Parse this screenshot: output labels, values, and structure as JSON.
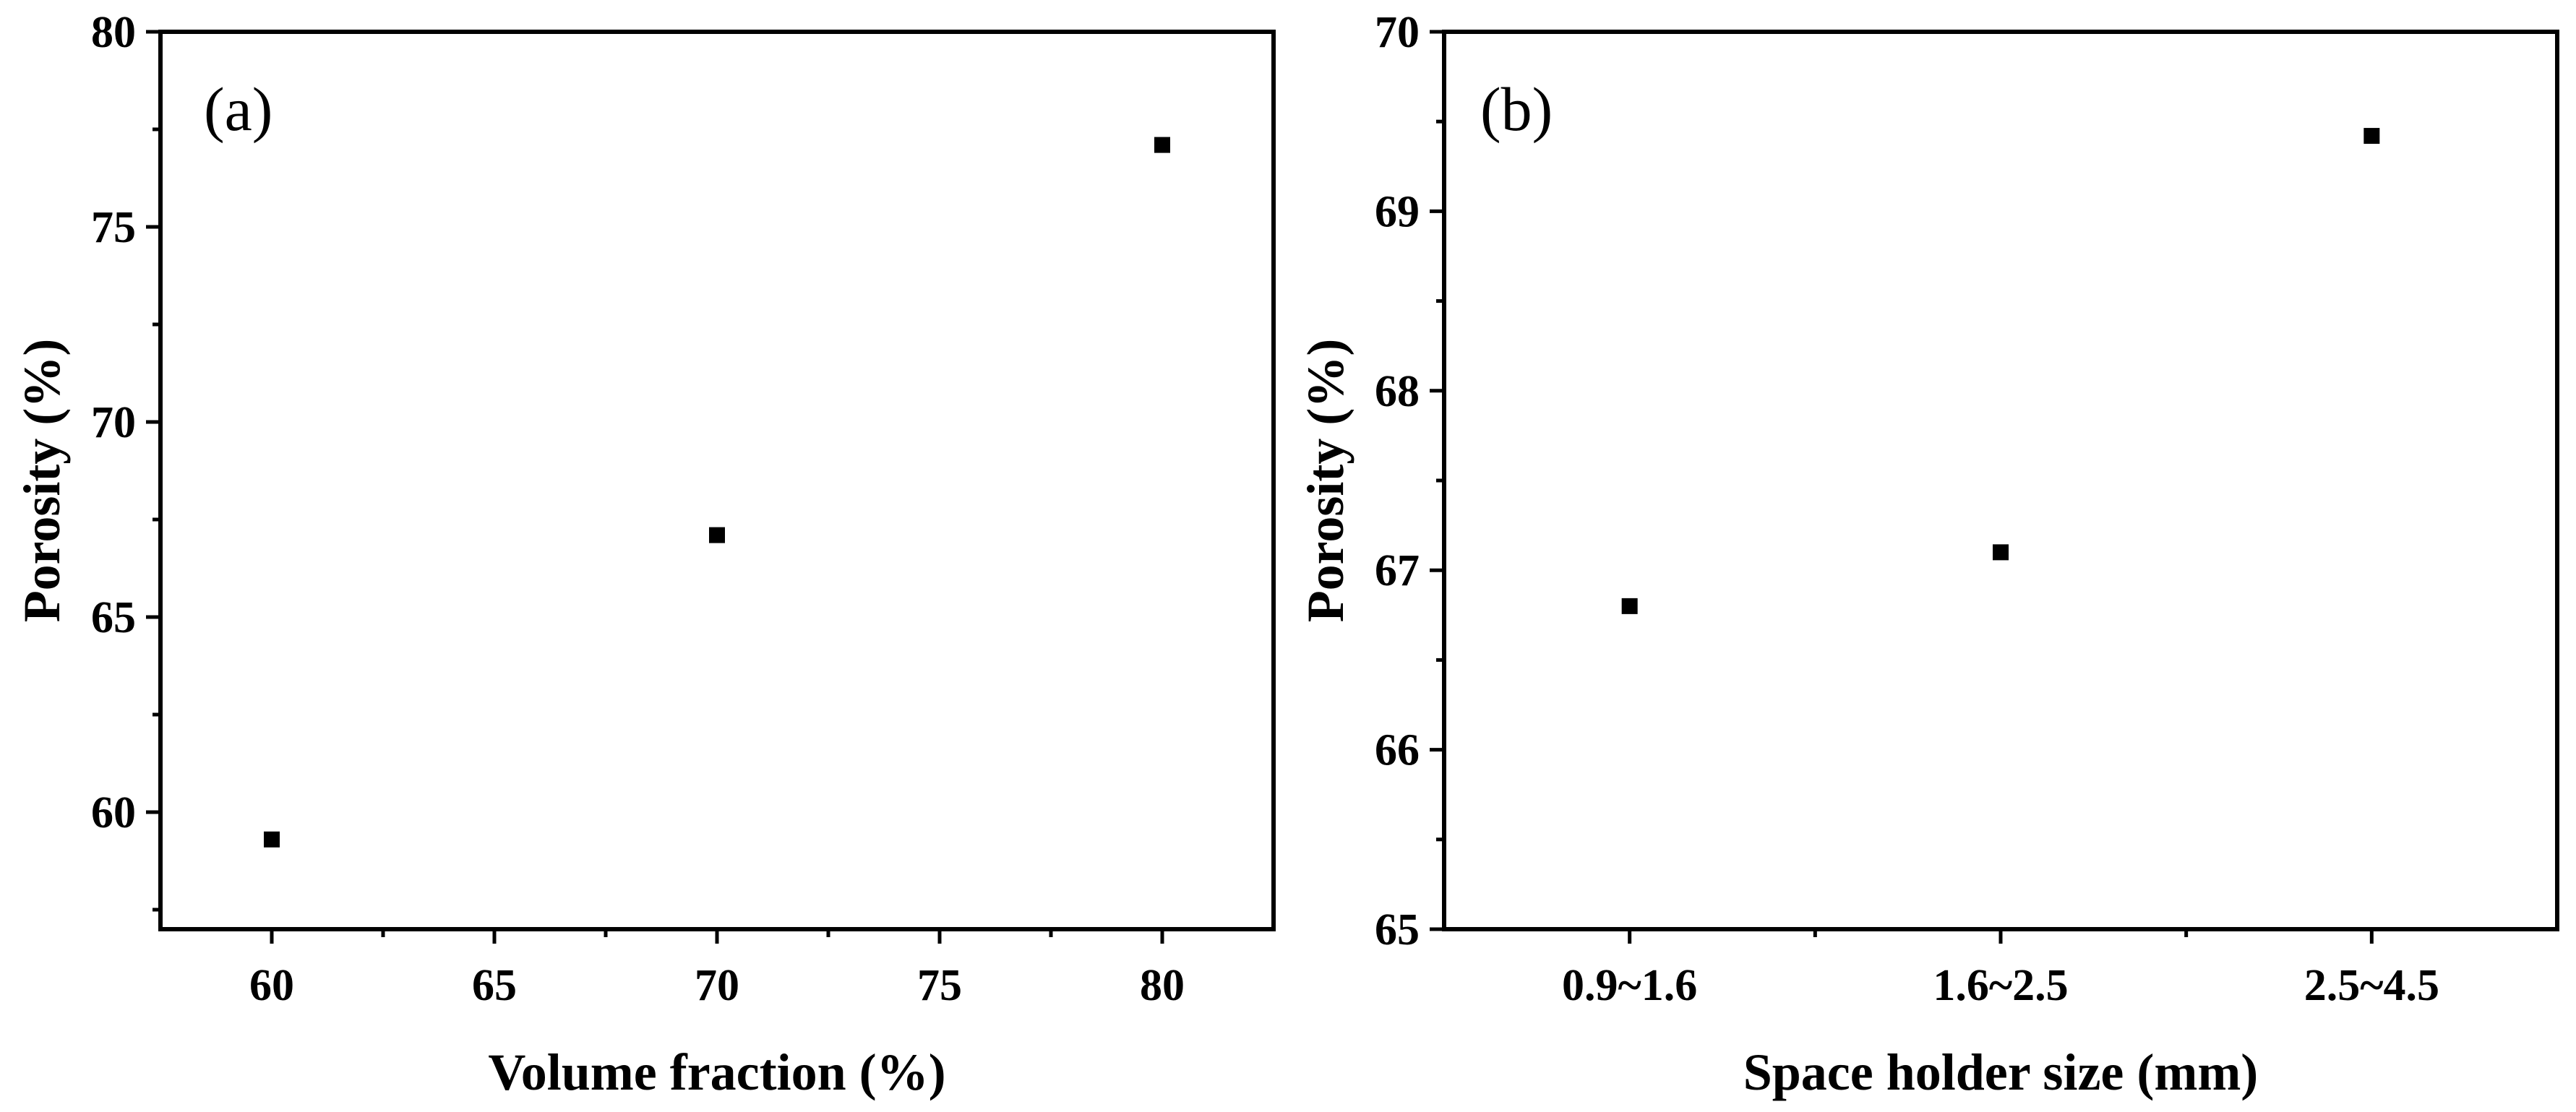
{
  "chart_data": [
    {
      "type": "scatter",
      "panel_label": "(a)",
      "xlabel": "Volume fraction (%)",
      "ylabel": "Porosity (%)",
      "xlim": [
        57.5,
        82.5
      ],
      "ylim": [
        57,
        80
      ],
      "xticks": [
        60,
        65,
        70,
        75,
        80
      ],
      "yticks": [
        60,
        65,
        70,
        75,
        80
      ],
      "points": [
        {
          "x": 60,
          "y": 59.3
        },
        {
          "x": 70,
          "y": 67.1
        },
        {
          "x": 80,
          "y": 77.1
        }
      ],
      "grid": false,
      "color": "#000000"
    },
    {
      "type": "scatter",
      "panel_label": "(b)",
      "xlabel": "Space holder size (mm)",
      "ylabel": "Porosity (%)",
      "categories": [
        "0.9~1.6",
        "1.6~2.5",
        "2.5~4.5"
      ],
      "ylim": [
        65,
        70
      ],
      "yticks": [
        65,
        66,
        67,
        68,
        69,
        70
      ],
      "values": [
        66.8,
        67.1,
        69.42
      ],
      "grid": false,
      "color": "#000000"
    }
  ]
}
